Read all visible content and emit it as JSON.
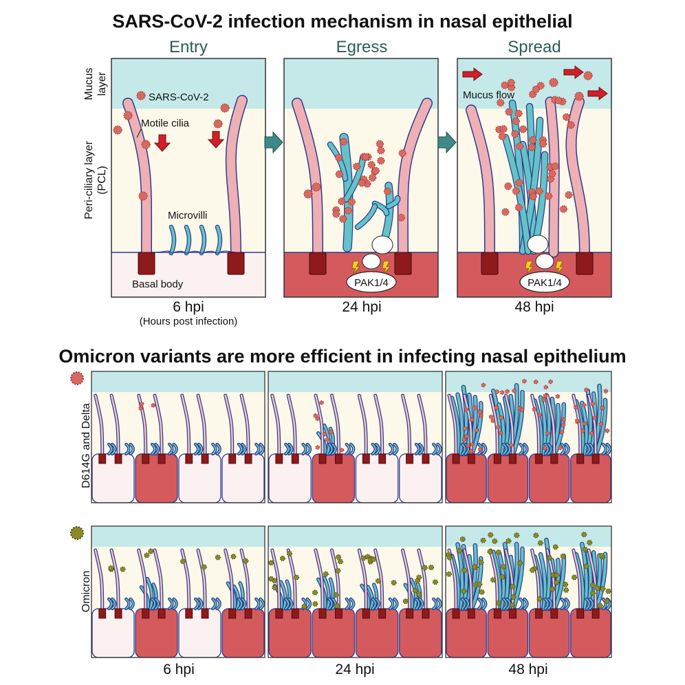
{
  "top": {
    "title": "SARS-CoV-2 infection mechanism in nasal epithelial",
    "panels": [
      {
        "heading": "Entry",
        "time": "6 hpi",
        "note": "(Hours post infection)"
      },
      {
        "heading": "Egress",
        "time": "24 hpi"
      },
      {
        "heading": "Spread",
        "time": "48 hpi"
      }
    ],
    "mucus_label": [
      "Mucus",
      "layer"
    ],
    "pcl_label": [
      "Peri-ciliary layer",
      "(PCL)"
    ],
    "annotations": {
      "virus": "SARS-CoV-2",
      "cilia": "Motile cilia",
      "microvilli": "Microvilli",
      "basal": "Basal body",
      "kinase": "PAK1/4",
      "flow": "Mucus flow"
    }
  },
  "bottom": {
    "title": "Omicron variants are more efficient in infecting nasal epithelium",
    "rows": [
      "D614G and Delta",
      "Omicron"
    ],
    "times": [
      "6 hpi",
      "24 hpi",
      "48 hpi"
    ]
  }
}
